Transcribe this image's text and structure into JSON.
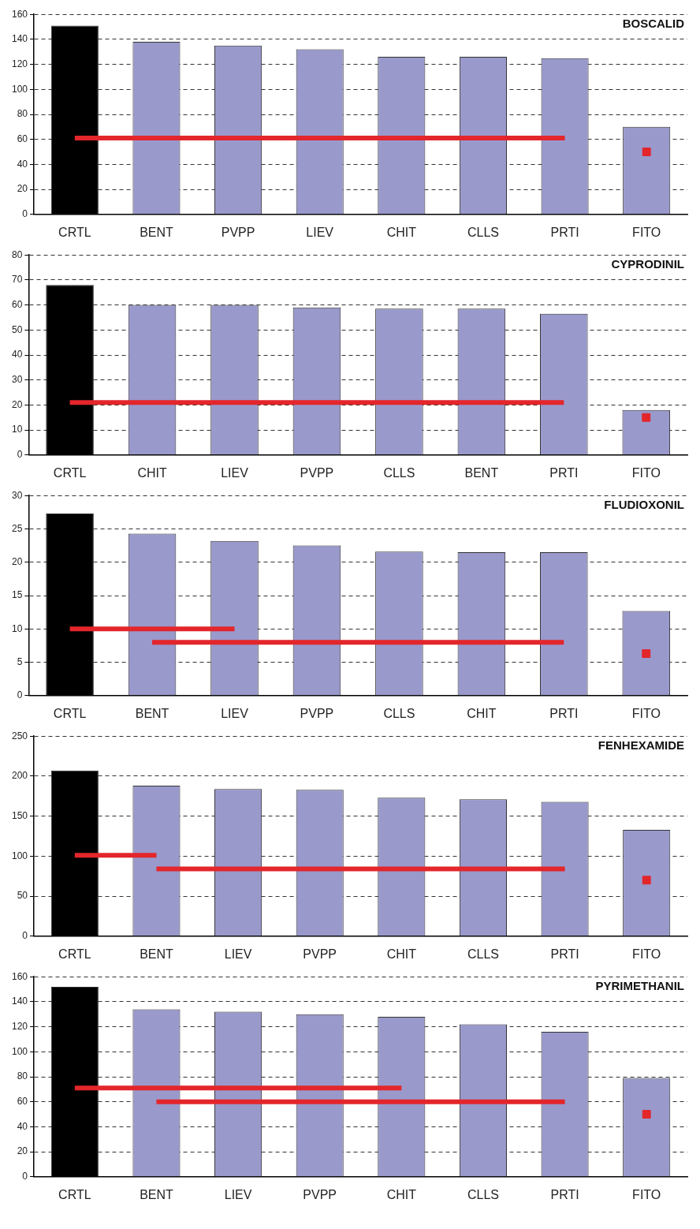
{
  "chart_data": [
    {
      "type": "bar",
      "title": "BOSCALID",
      "categories": [
        "CRTL",
        "BENT",
        "PVPP",
        "LIEV",
        "CHIT",
        "CLLS",
        "PRTI",
        "FITO"
      ],
      "ylim": [
        0,
        160
      ],
      "yticks": [
        0,
        20,
        40,
        60,
        80,
        100,
        120,
        140,
        160
      ],
      "grid": "y",
      "marker": "none",
      "legend": false,
      "series": [
        {
          "values": [
            151,
            138,
            135,
            132,
            126,
            126,
            125,
            70
          ],
          "colors": [
            "#000000",
            "#9999cc",
            "#9999cc",
            "#9999cc",
            "#9999cc",
            "#9999cc",
            "#9999cc",
            "#9999cc"
          ]
        },
        {
          "type": "line",
          "color": "#e3262b",
          "x": [
            "CRTL",
            "PRTI"
          ],
          "values": [
            61,
            61
          ]
        },
        {
          "type": "scatter",
          "marker": "square",
          "color": "#e3262b",
          "x": [
            "FITO"
          ],
          "values": [
            50
          ]
        }
      ]
    },
    {
      "type": "bar",
      "title": "CYPRODINIL",
      "categories": [
        "CRTL",
        "CHIT",
        "LIEV",
        "PVPP",
        "CLLS",
        "BENT",
        "PRTI",
        "FITO"
      ],
      "ylim": [
        0,
        80
      ],
      "yticks": [
        0,
        10,
        20,
        30,
        40,
        50,
        60,
        70,
        80
      ],
      "grid": "y",
      "marker": "none",
      "legend": false,
      "series": [
        {
          "values": [
            68,
            60,
            60,
            59,
            58.5,
            58.5,
            56.5,
            18
          ],
          "colors": [
            "#000000",
            "#9999cc",
            "#9999cc",
            "#9999cc",
            "#9999cc",
            "#9999cc",
            "#9999cc",
            "#9999cc"
          ]
        },
        {
          "type": "line",
          "color": "#e3262b",
          "x": [
            "CRTL",
            "PRTI"
          ],
          "values": [
            21,
            21
          ]
        },
        {
          "type": "scatter",
          "marker": "square",
          "color": "#e3262b",
          "x": [
            "FITO"
          ],
          "values": [
            15
          ]
        }
      ]
    },
    {
      "type": "bar",
      "title": "FLUDIOXONIL",
      "categories": [
        "CRTL",
        "BENT",
        "LIEV",
        "PVPP",
        "CLLS",
        "CHIT",
        "PRTI",
        "FITO"
      ],
      "ylim": [
        0,
        30
      ],
      "yticks": [
        0,
        5,
        10,
        15,
        20,
        25,
        30
      ],
      "grid": "y",
      "marker": "none",
      "legend": false,
      "series": [
        {
          "values": [
            27.3,
            24.3,
            23.2,
            22.5,
            21.6,
            21.5,
            21.5,
            12.7
          ],
          "colors": [
            "#000000",
            "#9999cc",
            "#9999cc",
            "#9999cc",
            "#9999cc",
            "#9999cc",
            "#9999cc",
            "#9999cc"
          ]
        },
        {
          "type": "line",
          "color": "#e3262b",
          "x": [
            "CRTL",
            "LIEV"
          ],
          "values": [
            10,
            10
          ]
        },
        {
          "type": "line",
          "color": "#e3262b",
          "x": [
            "BENT",
            "PRTI"
          ],
          "values": [
            8,
            8
          ]
        },
        {
          "type": "scatter",
          "marker": "square",
          "color": "#e3262b",
          "x": [
            "FITO"
          ],
          "values": [
            6.3
          ]
        }
      ]
    },
    {
      "type": "bar",
      "title": "FENHEXAMIDE",
      "categories": [
        "CRTL",
        "BENT",
        "LIEV",
        "PVPP",
        "CHIT",
        "CLLS",
        "PRTI",
        "FITO"
      ],
      "ylim": [
        0,
        250
      ],
      "yticks": [
        0,
        50,
        100,
        150,
        200,
        250
      ],
      "grid": "y",
      "marker": "none",
      "legend": false,
      "series": [
        {
          "values": [
            207,
            188,
            184,
            183,
            173,
            171,
            168,
            133
          ],
          "colors": [
            "#000000",
            "#9999cc",
            "#9999cc",
            "#9999cc",
            "#9999cc",
            "#9999cc",
            "#9999cc",
            "#9999cc"
          ]
        },
        {
          "type": "line",
          "color": "#e3262b",
          "x": [
            "CRTL",
            "BENT"
          ],
          "values": [
            101,
            101
          ]
        },
        {
          "type": "line",
          "color": "#e3262b",
          "x": [
            "BENT",
            "PRTI"
          ],
          "values": [
            84,
            84
          ]
        },
        {
          "type": "scatter",
          "marker": "square",
          "color": "#e3262b",
          "x": [
            "FITO"
          ],
          "values": [
            70
          ]
        }
      ]
    },
    {
      "type": "bar",
      "title": "PYRIMETHANIL",
      "categories": [
        "CRTL",
        "BENT",
        "LIEV",
        "PVPP",
        "CHIT",
        "CLLS",
        "PRTI",
        "FITO"
      ],
      "ylim": [
        0,
        160
      ],
      "yticks": [
        0,
        20,
        40,
        60,
        80,
        100,
        120,
        140,
        160
      ],
      "grid": "y",
      "marker": "none",
      "legend": false,
      "series": [
        {
          "values": [
            152,
            134,
            132,
            130,
            128,
            122,
            116,
            79
          ],
          "colors": [
            "#000000",
            "#9999cc",
            "#9999cc",
            "#9999cc",
            "#9999cc",
            "#9999cc",
            "#9999cc",
            "#9999cc"
          ]
        },
        {
          "type": "line",
          "color": "#e3262b",
          "x": [
            "CRTL",
            "CHIT"
          ],
          "values": [
            71,
            71
          ]
        },
        {
          "type": "line",
          "color": "#e3262b",
          "x": [
            "BENT",
            "PRTI"
          ],
          "values": [
            60,
            60
          ]
        },
        {
          "type": "scatter",
          "marker": "square",
          "color": "#e3262b",
          "x": [
            "FITO"
          ],
          "values": [
            50
          ]
        }
      ]
    }
  ]
}
